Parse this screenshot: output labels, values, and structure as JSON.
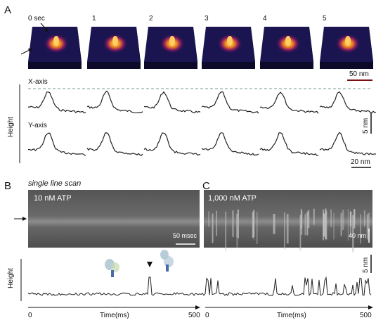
{
  "panels": {
    "a": "A",
    "b": "B",
    "c": "C"
  },
  "afm_frames": {
    "labels": [
      "0 sec",
      "1",
      "2",
      "3",
      "4",
      "5"
    ]
  },
  "traces": {
    "scale_xy": "50 nm",
    "x_axis_label": "X-axis",
    "y_axis_label": "Y-axis",
    "scale_z": "5 nm",
    "scale_lower": "20 nm",
    "height_label": "Height"
  },
  "line_scan": {
    "title": "single line scan",
    "b_label": "10 nM ATP",
    "b_scale": "50 msec",
    "c_label": "1,000 nM ATP",
    "c_scale": "40 nm"
  },
  "bottom_plot": {
    "height_label": "Height",
    "scale_z": "5 nm",
    "xlabel": "Time(ms)",
    "b_ticks": [
      "0",
      "500"
    ],
    "c_ticks": [
      "0",
      "500"
    ]
  },
  "colors": {
    "afm_dark": "#1a1550",
    "afm_peak": "#f0a030",
    "kymo_bg": "#6e6e6e",
    "dashed": "#7a9a9a",
    "scale_bar": "#7a1010"
  }
}
